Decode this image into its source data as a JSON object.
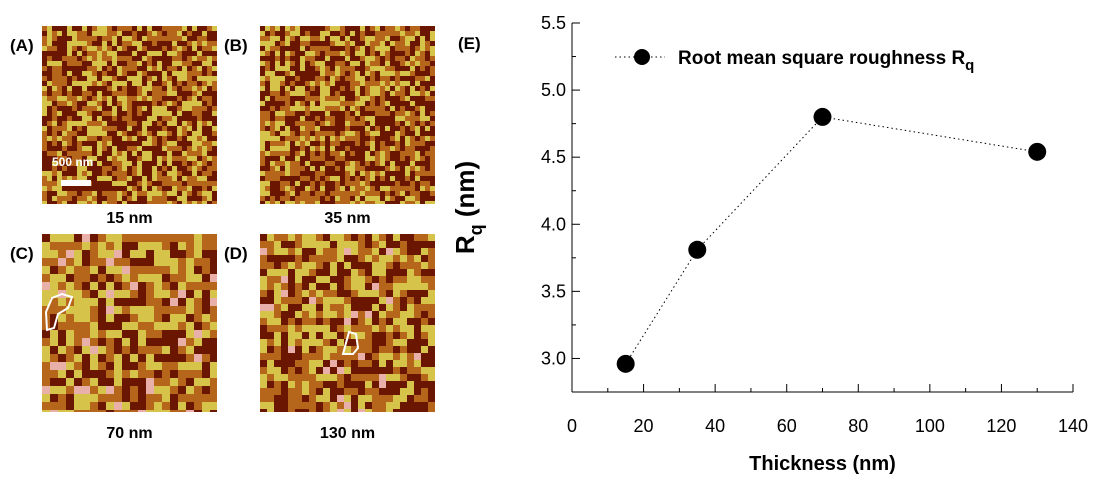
{
  "panels": [
    {
      "letter": "(A)",
      "caption": "15 nm"
    },
    {
      "letter": "(B)",
      "caption": "35 nm"
    },
    {
      "letter": "(C)",
      "caption": "70 nm"
    },
    {
      "letter": "(D)",
      "caption": "130 nm"
    }
  ],
  "scale_bar_label": "500 nm",
  "colors": {
    "afm_dark": "#6b1600",
    "afm_mid": "#b5661a",
    "afm_light": "#d6c34a",
    "afm_pink": "#e8b0a8"
  },
  "chart_data": {
    "type": "scatter",
    "panel_letter": "(E)",
    "x": [
      15,
      35,
      70,
      130
    ],
    "y": [
      2.96,
      3.81,
      4.8,
      4.54
    ],
    "series": [
      {
        "name_main": "Root mean square roughness R",
        "name_sub": "q",
        "connector": "dotted"
      }
    ],
    "xlabel": "Thickness (nm)",
    "ylabel_main": "R",
    "ylabel_sub": "q",
    "ylabel_unit": " (nm)",
    "xlim": [
      0,
      140
    ],
    "ylim": [
      2.75,
      5.5
    ],
    "xticks": [
      "0",
      "20",
      "40",
      "60",
      "80",
      "100",
      "120",
      "140"
    ],
    "yticks": [
      "3.0",
      "3.5",
      "4.0",
      "4.5",
      "5.0",
      "5.5"
    ],
    "grid": false,
    "legend_position": "top-left"
  }
}
